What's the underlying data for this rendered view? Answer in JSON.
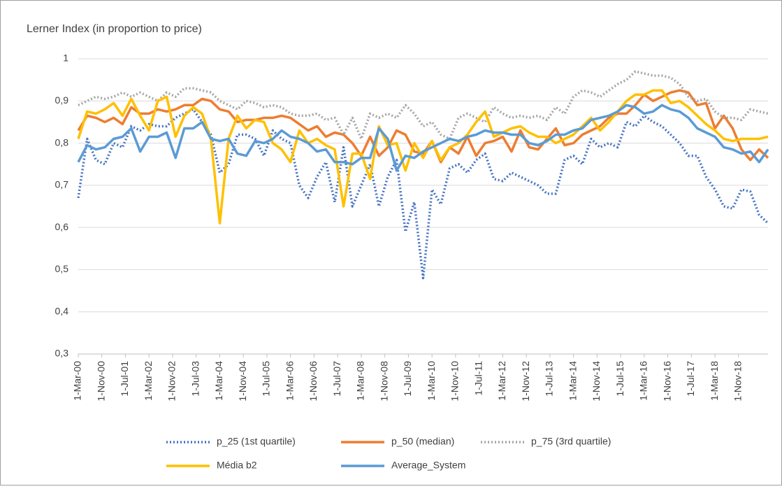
{
  "chart_data": {
    "type": "line",
    "title": "Lerner Index (in proportion to price)",
    "x": [
      "2000-03-01",
      "2000-06-01",
      "2000-09-01",
      "2000-12-01",
      "2001-03-01",
      "2001-06-01",
      "2001-09-01",
      "2001-12-01",
      "2002-03-01",
      "2002-06-01",
      "2002-09-01",
      "2002-12-01",
      "2003-03-01",
      "2003-06-01",
      "2003-09-01",
      "2003-12-01",
      "2004-03-01",
      "2004-06-01",
      "2004-09-01",
      "2004-12-01",
      "2005-03-01",
      "2005-06-01",
      "2005-09-01",
      "2005-12-01",
      "2006-03-01",
      "2006-06-01",
      "2006-09-01",
      "2006-12-01",
      "2007-03-01",
      "2007-06-01",
      "2007-09-01",
      "2007-12-01",
      "2008-03-01",
      "2008-06-01",
      "2008-09-01",
      "2008-12-01",
      "2009-03-01",
      "2009-06-01",
      "2009-09-01",
      "2009-12-01",
      "2010-03-01",
      "2010-06-01",
      "2010-09-01",
      "2010-12-01",
      "2011-03-01",
      "2011-06-01",
      "2011-09-01",
      "2011-12-01",
      "2012-03-01",
      "2012-06-01",
      "2012-09-01",
      "2012-12-01",
      "2013-03-01",
      "2013-06-01",
      "2013-09-01",
      "2013-12-01",
      "2014-03-01",
      "2014-06-01",
      "2014-09-01",
      "2014-12-01",
      "2015-03-01",
      "2015-06-01",
      "2015-09-01",
      "2015-12-01",
      "2016-03-01",
      "2016-06-01",
      "2016-09-01",
      "2016-12-01",
      "2017-03-01",
      "2017-06-01",
      "2017-09-01",
      "2017-12-01",
      "2018-03-01",
      "2018-06-01",
      "2018-09-01",
      "2018-12-01",
      "2019-03-01",
      "2019-06-01",
      "2019-09-01"
    ],
    "series": [
      {
        "name": "p_25 (1st quartile)",
        "color": "#4472c4",
        "style": "dotted",
        "values": [
          0.67,
          0.81,
          0.76,
          0.75,
          0.8,
          0.79,
          0.84,
          0.83,
          0.845,
          0.84,
          0.84,
          0.86,
          0.87,
          0.88,
          0.85,
          0.82,
          0.73,
          0.75,
          0.82,
          0.82,
          0.81,
          0.77,
          0.83,
          0.81,
          0.8,
          0.7,
          0.67,
          0.72,
          0.755,
          0.66,
          0.79,
          0.65,
          0.7,
          0.75,
          0.65,
          0.72,
          0.76,
          0.59,
          0.66,
          0.48,
          0.69,
          0.655,
          0.74,
          0.75,
          0.73,
          0.76,
          0.775,
          0.715,
          0.71,
          0.73,
          0.72,
          0.71,
          0.7,
          0.68,
          0.68,
          0.76,
          0.77,
          0.75,
          0.81,
          0.79,
          0.8,
          0.79,
          0.85,
          0.84,
          0.865,
          0.85,
          0.84,
          0.82,
          0.8,
          0.77,
          0.77,
          0.72,
          0.69,
          0.65,
          0.645,
          0.69,
          0.685,
          0.63,
          0.61
        ]
      },
      {
        "name": "p_50 (median)",
        "color": "#ed7d31",
        "style": "solid",
        "values": [
          0.83,
          0.865,
          0.86,
          0.85,
          0.86,
          0.845,
          0.885,
          0.87,
          0.87,
          0.88,
          0.875,
          0.88,
          0.89,
          0.89,
          0.905,
          0.9,
          0.88,
          0.875,
          0.85,
          0.855,
          0.855,
          0.86,
          0.86,
          0.865,
          0.86,
          0.845,
          0.83,
          0.84,
          0.815,
          0.825,
          0.82,
          0.8,
          0.77,
          0.815,
          0.77,
          0.79,
          0.83,
          0.82,
          0.78,
          0.775,
          0.805,
          0.755,
          0.79,
          0.775,
          0.815,
          0.77,
          0.8,
          0.805,
          0.815,
          0.78,
          0.83,
          0.79,
          0.785,
          0.81,
          0.835,
          0.795,
          0.8,
          0.82,
          0.83,
          0.84,
          0.86,
          0.87,
          0.87,
          0.89,
          0.915,
          0.9,
          0.91,
          0.92,
          0.925,
          0.92,
          0.89,
          0.895,
          0.835,
          0.865,
          0.835,
          0.785,
          0.76,
          0.785,
          0.765
        ]
      },
      {
        "name": "p_75 (3rd quartile)",
        "color": "#a5a5a5",
        "style": "dotted",
        "values": [
          0.89,
          0.9,
          0.91,
          0.905,
          0.91,
          0.92,
          0.91,
          0.92,
          0.91,
          0.9,
          0.92,
          0.91,
          0.93,
          0.93,
          0.925,
          0.92,
          0.9,
          0.89,
          0.88,
          0.9,
          0.895,
          0.885,
          0.89,
          0.885,
          0.87,
          0.865,
          0.865,
          0.87,
          0.855,
          0.86,
          0.82,
          0.86,
          0.81,
          0.87,
          0.86,
          0.87,
          0.86,
          0.89,
          0.87,
          0.84,
          0.85,
          0.82,
          0.81,
          0.86,
          0.87,
          0.86,
          0.85,
          0.885,
          0.87,
          0.86,
          0.865,
          0.86,
          0.865,
          0.855,
          0.885,
          0.87,
          0.91,
          0.925,
          0.92,
          0.91,
          0.925,
          0.94,
          0.95,
          0.97,
          0.965,
          0.96,
          0.96,
          0.955,
          0.94,
          0.91,
          0.9,
          0.905,
          0.875,
          0.86,
          0.86,
          0.855,
          0.88,
          0.875,
          0.87
        ]
      },
      {
        "name": "Média b2",
        "color": "#ffc000",
        "style": "solid",
        "values": [
          0.81,
          0.875,
          0.87,
          0.88,
          0.895,
          0.865,
          0.905,
          0.865,
          0.83,
          0.9,
          0.91,
          0.815,
          0.865,
          0.885,
          0.87,
          0.81,
          0.61,
          0.81,
          0.865,
          0.835,
          0.855,
          0.85,
          0.8,
          0.785,
          0.755,
          0.83,
          0.8,
          0.81,
          0.795,
          0.785,
          0.65,
          0.775,
          0.775,
          0.715,
          0.84,
          0.795,
          0.8,
          0.735,
          0.8,
          0.765,
          0.805,
          0.76,
          0.79,
          0.8,
          0.82,
          0.85,
          0.875,
          0.815,
          0.825,
          0.835,
          0.84,
          0.825,
          0.815,
          0.815,
          0.8,
          0.81,
          0.82,
          0.84,
          0.86,
          0.83,
          0.85,
          0.875,
          0.9,
          0.915,
          0.915,
          0.925,
          0.925,
          0.895,
          0.9,
          0.885,
          0.865,
          0.845,
          0.83,
          0.81,
          0.805,
          0.81,
          0.81,
          0.81,
          0.815
        ]
      },
      {
        "name": "Average_System",
        "color": "#5b9bd5",
        "style": "solid",
        "values": [
          0.755,
          0.795,
          0.785,
          0.79,
          0.81,
          0.815,
          0.835,
          0.78,
          0.815,
          0.815,
          0.825,
          0.765,
          0.835,
          0.835,
          0.85,
          0.81,
          0.805,
          0.81,
          0.775,
          0.77,
          0.805,
          0.8,
          0.81,
          0.83,
          0.815,
          0.81,
          0.8,
          0.78,
          0.785,
          0.755,
          0.755,
          0.75,
          0.765,
          0.765,
          0.835,
          0.81,
          0.735,
          0.77,
          0.765,
          0.78,
          0.79,
          0.8,
          0.81,
          0.805,
          0.815,
          0.82,
          0.83,
          0.825,
          0.825,
          0.82,
          0.82,
          0.8,
          0.795,
          0.805,
          0.82,
          0.82,
          0.83,
          0.835,
          0.855,
          0.86,
          0.865,
          0.875,
          0.89,
          0.885,
          0.87,
          0.875,
          0.89,
          0.88,
          0.875,
          0.86,
          0.835,
          0.825,
          0.815,
          0.79,
          0.785,
          0.775,
          0.78,
          0.755,
          0.785
        ]
      }
    ],
    "xlim": [
      "2000-03-01",
      "2019-09-01"
    ],
    "xticks": [
      {
        "value": "2000-03-01",
        "label": "1-Mar-00"
      },
      {
        "value": "2000-11-01",
        "label": "1-Nov-00"
      },
      {
        "value": "2001-07-01",
        "label": "1-Jul-01"
      },
      {
        "value": "2002-03-01",
        "label": "1-Mar-02"
      },
      {
        "value": "2002-11-01",
        "label": "1-Nov-02"
      },
      {
        "value": "2003-07-01",
        "label": "1-Jul-03"
      },
      {
        "value": "2004-03-01",
        "label": "1-Mar-04"
      },
      {
        "value": "2004-11-01",
        "label": "1-Nov-04"
      },
      {
        "value": "2005-07-01",
        "label": "1-Jul-05"
      },
      {
        "value": "2006-03-01",
        "label": "1-Mar-06"
      },
      {
        "value": "2006-11-01",
        "label": "1-Nov-06"
      },
      {
        "value": "2007-07-01",
        "label": "1-Jul-07"
      },
      {
        "value": "2008-03-01",
        "label": "1-Mar-08"
      },
      {
        "value": "2008-11-01",
        "label": "1-Nov-08"
      },
      {
        "value": "2009-07-01",
        "label": "1-Jul-09"
      },
      {
        "value": "2010-03-01",
        "label": "1-Mar-10"
      },
      {
        "value": "2010-11-01",
        "label": "1-Nov-10"
      },
      {
        "value": "2011-07-01",
        "label": "1-Jul-11"
      },
      {
        "value": "2012-03-01",
        "label": "1-Mar-12"
      },
      {
        "value": "2012-11-01",
        "label": "1-Nov-12"
      },
      {
        "value": "2013-07-01",
        "label": "1-Jul-13"
      },
      {
        "value": "2014-03-01",
        "label": "1-Mar-14"
      },
      {
        "value": "2014-11-01",
        "label": "1-Nov-14"
      },
      {
        "value": "2015-07-01",
        "label": "1-Jul-15"
      },
      {
        "value": "2016-03-01",
        "label": "1-Mar-16"
      },
      {
        "value": "2016-11-01",
        "label": "1-Nov-16"
      },
      {
        "value": "2017-07-01",
        "label": "1-Jul-17"
      },
      {
        "value": "2018-03-01",
        "label": "1-Mar-18"
      },
      {
        "value": "2018-11-01",
        "label": "1-Nov-18"
      }
    ],
    "ylim": [
      0.3,
      1
    ],
    "yticks": [
      {
        "value": 0.3,
        "label": "0,3"
      },
      {
        "value": 0.4,
        "label": "0,4"
      },
      {
        "value": 0.5,
        "label": "0,5"
      },
      {
        "value": 0.6,
        "label": "0,6"
      },
      {
        "value": 0.7,
        "label": "0,7"
      },
      {
        "value": 0.8,
        "label": "0,8"
      },
      {
        "value": 0.9,
        "label": "0,9"
      },
      1
    ],
    "grid": true,
    "legend": "bottom"
  }
}
